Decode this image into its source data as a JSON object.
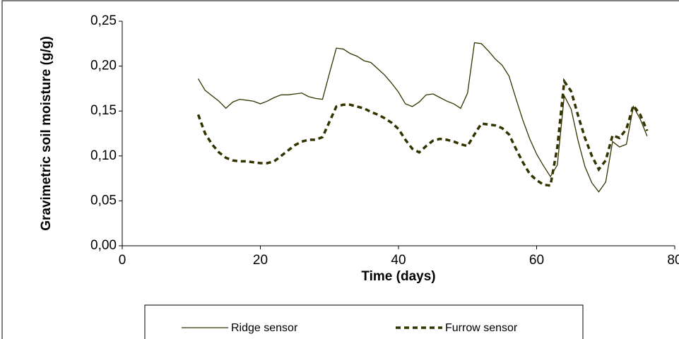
{
  "chart_data": {
    "type": "line",
    "x_label": "Time (days)",
    "y_label": "Gravimetric soil moisture (g/g)",
    "x": [
      11,
      12,
      13,
      14,
      15,
      16,
      17,
      18,
      19,
      20,
      21,
      22,
      23,
      24,
      25,
      26,
      27,
      28,
      29,
      30,
      31,
      32,
      33,
      34,
      35,
      36,
      37,
      38,
      39,
      40,
      41,
      42,
      43,
      44,
      45,
      46,
      47,
      48,
      49,
      50,
      51,
      52,
      53,
      54,
      55,
      56,
      57,
      58,
      59,
      60,
      61,
      62,
      63,
      64,
      65,
      66,
      67,
      68,
      69,
      70,
      71,
      72,
      73,
      74,
      75,
      76
    ],
    "series": [
      {
        "name": "Ridge sensor",
        "color": "#333300",
        "line_style": "solid",
        "values": [
          0.186,
          0.173,
          0.167,
          0.161,
          0.153,
          0.16,
          0.163,
          0.162,
          0.161,
          0.158,
          0.161,
          0.165,
          0.168,
          0.168,
          0.169,
          0.17,
          0.166,
          0.164,
          0.163,
          0.192,
          0.22,
          0.219,
          0.214,
          0.211,
          0.206,
          0.204,
          0.197,
          0.19,
          0.181,
          0.171,
          0.158,
          0.155,
          0.16,
          0.168,
          0.169,
          0.165,
          0.161,
          0.158,
          0.153,
          0.17,
          0.226,
          0.225,
          0.217,
          0.208,
          0.201,
          0.189,
          0.164,
          0.14,
          0.119,
          0.102,
          0.089,
          0.077,
          0.09,
          0.167,
          0.152,
          0.117,
          0.088,
          0.07,
          0.06,
          0.071,
          0.116,
          0.11,
          0.113,
          0.155,
          0.141,
          0.122
        ]
      },
      {
        "name": "Furrow sensor",
        "color": "#333300",
        "line_style": "dashed",
        "values": [
          0.146,
          0.125,
          0.113,
          0.104,
          0.098,
          0.095,
          0.094,
          0.094,
          0.093,
          0.092,
          0.092,
          0.094,
          0.1,
          0.106,
          0.112,
          0.116,
          0.118,
          0.118,
          0.121,
          0.138,
          0.155,
          0.157,
          0.157,
          0.155,
          0.153,
          0.149,
          0.146,
          0.142,
          0.137,
          0.13,
          0.118,
          0.108,
          0.104,
          0.111,
          0.117,
          0.119,
          0.118,
          0.116,
          0.113,
          0.111,
          0.124,
          0.136,
          0.135,
          0.134,
          0.131,
          0.124,
          0.108,
          0.093,
          0.08,
          0.073,
          0.068,
          0.067,
          0.11,
          0.183,
          0.172,
          0.145,
          0.12,
          0.1,
          0.085,
          0.095,
          0.123,
          0.12,
          0.13,
          0.156,
          0.146,
          0.128
        ]
      }
    ],
    "xlim": [
      0,
      80
    ],
    "xticks": [
      0,
      20,
      40,
      60,
      80
    ],
    "ylim": [
      0,
      0.25
    ],
    "yticks": [
      {
        "value": 0,
        "label": "0,00"
      },
      {
        "value": 0.05,
        "label": "0,05"
      },
      {
        "value": 0.1,
        "label": "0,10"
      },
      {
        "value": 0.15,
        "label": "0,15"
      },
      {
        "value": 0.2,
        "label": "0,20"
      },
      {
        "value": 0.25,
        "label": "0,25"
      }
    ],
    "grid": false,
    "legend": "bottom"
  }
}
